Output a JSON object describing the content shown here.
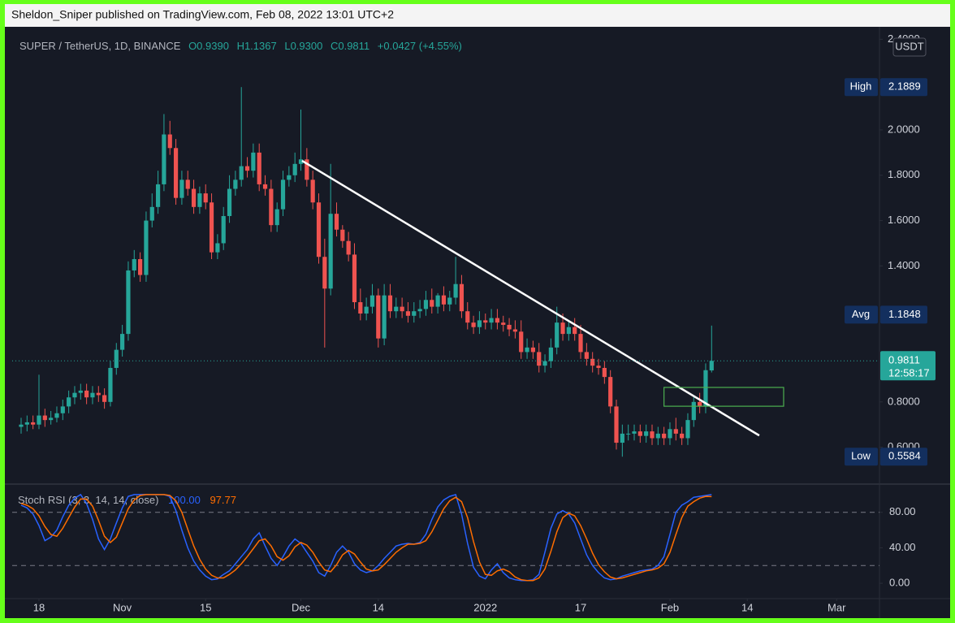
{
  "header": "Sheldon_Sniper published on TradingView.com, Feb 08, 2022 13:01 UTC+2",
  "chart_data": [
    {
      "type": "candlestick",
      "legend": {
        "symbol": "SUPER / TetherUS, 1D, BINANCE",
        "open": "O0.9390",
        "high": "H1.1367",
        "low": "L0.9300",
        "close": "C0.9811",
        "change": "+0.0427 (+4.55%)"
      },
      "currency": "USDT",
      "up_color": "#26a69a",
      "down_color": "#ef5350",
      "open": [
        0.69,
        0.7,
        0.71,
        0.7,
        0.74,
        0.72,
        0.73,
        0.75,
        0.78,
        0.82,
        0.84,
        0.85,
        0.82,
        0.84,
        0.83,
        0.8,
        0.95,
        1.03,
        1.1,
        1.38,
        1.43,
        1.36,
        1.6,
        1.66,
        1.76,
        1.98,
        1.92,
        1.7,
        1.78,
        1.74,
        1.66,
        1.72,
        1.68,
        1.46,
        1.5,
        1.62,
        1.74,
        1.78,
        1.84,
        1.82,
        1.9,
        1.76,
        1.74,
        1.58,
        1.65,
        1.78,
        1.8,
        1.85,
        1.87,
        1.78,
        1.68,
        1.44,
        1.3,
        1.63,
        1.56,
        1.51,
        1.45,
        1.24,
        1.19,
        1.22,
        1.27,
        1.08,
        1.27,
        1.2,
        1.22,
        1.2,
        1.18,
        1.2,
        1.21,
        1.25,
        1.22,
        1.27,
        1.23,
        1.26,
        1.32,
        1.2,
        1.15,
        1.13,
        1.16,
        1.15,
        1.17,
        1.15,
        1.14,
        1.12,
        1.11,
        1.02,
        1.04,
        1.02,
        0.96,
        0.98,
        1.04,
        1.15,
        1.1,
        1.13,
        1.1,
        1.02,
        0.99,
        0.96,
        0.95,
        0.91,
        0.78,
        0.62,
        0.66,
        0.66,
        0.67,
        0.65,
        0.67,
        0.64,
        0.66,
        0.64,
        0.68,
        0.66,
        0.64,
        0.72,
        0.8,
        0.78,
        0.939
      ],
      "high": [
        0.73,
        0.74,
        0.74,
        0.92,
        0.77,
        0.76,
        0.78,
        0.81,
        0.85,
        0.87,
        0.88,
        0.88,
        0.87,
        0.87,
        0.86,
        0.98,
        1.06,
        1.14,
        1.42,
        1.47,
        1.46,
        1.64,
        1.72,
        1.82,
        2.07,
        2.04,
        1.96,
        1.82,
        1.82,
        1.78,
        1.75,
        1.76,
        1.72,
        1.54,
        1.66,
        1.8,
        1.82,
        2.1889,
        1.88,
        1.94,
        1.94,
        1.8,
        1.78,
        1.68,
        1.82,
        1.84,
        1.9,
        2.09,
        1.92,
        1.82,
        1.72,
        1.52,
        1.85,
        1.68,
        1.58,
        1.55,
        1.5,
        1.3,
        1.26,
        1.32,
        1.3,
        1.32,
        1.32,
        1.26,
        1.26,
        1.24,
        1.24,
        1.25,
        1.29,
        1.3,
        1.28,
        1.31,
        1.29,
        1.44,
        1.36,
        1.24,
        1.18,
        1.2,
        1.19,
        1.21,
        1.21,
        1.18,
        1.17,
        1.16,
        1.16,
        1.08,
        1.07,
        1.06,
        1.01,
        1.08,
        1.22,
        1.19,
        1.16,
        1.17,
        1.14,
        1.06,
        1.02,
        0.99,
        0.98,
        0.94,
        0.81,
        0.7,
        0.7,
        0.7,
        0.7,
        0.7,
        0.7,
        0.69,
        0.69,
        0.71,
        0.73,
        0.69,
        0.75,
        0.83,
        0.84,
        0.97,
        1.1367
      ],
      "low": [
        0.66,
        0.67,
        0.68,
        0.68,
        0.69,
        0.7,
        0.71,
        0.72,
        0.75,
        0.79,
        0.81,
        0.79,
        0.79,
        0.8,
        0.77,
        0.78,
        0.92,
        1.0,
        1.07,
        1.35,
        1.33,
        1.33,
        1.57,
        1.63,
        1.73,
        1.89,
        1.67,
        1.67,
        1.71,
        1.63,
        1.63,
        1.65,
        1.43,
        1.43,
        1.47,
        1.59,
        1.71,
        1.75,
        1.79,
        1.79,
        1.73,
        1.71,
        1.55,
        1.55,
        1.62,
        1.75,
        1.77,
        1.82,
        1.75,
        1.65,
        1.41,
        1.04,
        1.27,
        1.53,
        1.48,
        1.42,
        1.21,
        1.16,
        1.16,
        1.19,
        1.04,
        1.05,
        1.17,
        1.17,
        1.17,
        1.15,
        1.15,
        1.17,
        1.18,
        1.19,
        1.19,
        1.2,
        1.2,
        1.23,
        1.17,
        1.12,
        1.1,
        1.1,
        1.12,
        1.12,
        1.12,
        1.11,
        1.09,
        1.08,
        0.99,
        0.99,
        0.99,
        0.93,
        0.93,
        0.95,
        1.01,
        1.07,
        1.07,
        1.07,
        0.99,
        0.96,
        0.93,
        0.92,
        0.88,
        0.75,
        0.59,
        0.5584,
        0.63,
        0.63,
        0.62,
        0.62,
        0.61,
        0.61,
        0.61,
        0.61,
        0.63,
        0.61,
        0.61,
        0.69,
        0.75,
        0.75,
        0.93
      ],
      "close": [
        0.7,
        0.71,
        0.7,
        0.74,
        0.72,
        0.73,
        0.75,
        0.78,
        0.82,
        0.84,
        0.85,
        0.82,
        0.84,
        0.83,
        0.8,
        0.95,
        1.03,
        1.1,
        1.38,
        1.43,
        1.36,
        1.6,
        1.66,
        1.76,
        1.98,
        1.92,
        1.7,
        1.78,
        1.74,
        1.66,
        1.72,
        1.68,
        1.46,
        1.5,
        1.62,
        1.74,
        1.78,
        1.84,
        1.82,
        1.9,
        1.76,
        1.74,
        1.58,
        1.65,
        1.78,
        1.8,
        1.85,
        1.87,
        1.78,
        1.68,
        1.44,
        1.3,
        1.63,
        1.56,
        1.51,
        1.45,
        1.24,
        1.19,
        1.22,
        1.27,
        1.08,
        1.27,
        1.2,
        1.22,
        1.2,
        1.18,
        1.2,
        1.21,
        1.25,
        1.22,
        1.27,
        1.23,
        1.26,
        1.32,
        1.2,
        1.15,
        1.13,
        1.16,
        1.15,
        1.17,
        1.15,
        1.14,
        1.12,
        1.11,
        1.02,
        1.04,
        1.02,
        0.96,
        0.98,
        1.04,
        1.15,
        1.1,
        1.13,
        1.1,
        1.02,
        0.99,
        0.96,
        0.95,
        0.91,
        0.78,
        0.62,
        0.66,
        0.66,
        0.67,
        0.65,
        0.67,
        0.64,
        0.66,
        0.64,
        0.68,
        0.66,
        0.64,
        0.72,
        0.8,
        0.78,
        0.94,
        0.9811
      ],
      "xlim": [
        -1.5,
        144.2
      ],
      "xticks": [
        {
          "value": 3,
          "label": "18"
        },
        {
          "value": 17,
          "label": "Nov"
        },
        {
          "value": 31,
          "label": "15"
        },
        {
          "value": 47,
          "label": "Dec"
        },
        {
          "value": 60,
          "label": "14"
        },
        {
          "value": 78,
          "label": "2022"
        },
        {
          "value": 94,
          "label": "17"
        },
        {
          "value": 109,
          "label": "Feb"
        },
        {
          "value": 122,
          "label": "14"
        },
        {
          "value": 137,
          "label": "Mar"
        }
      ],
      "ylim": [
        0.441,
        2.437
      ],
      "yticks": [
        {
          "value": 2.4,
          "label": "2.4000"
        },
        {
          "value": 2.0,
          "label": "2.0000"
        },
        {
          "value": 1.8,
          "label": "1.8000"
        },
        {
          "value": 1.6,
          "label": "1.6000"
        },
        {
          "value": 1.4,
          "label": "1.4000"
        },
        {
          "value": 0.8,
          "label": "0.8000"
        },
        {
          "value": 0.6,
          "label": "0.6000"
        }
      ],
      "markers": [
        {
          "label": "High",
          "value": 2.1889
        },
        {
          "label": "Avg",
          "value": 1.1848
        },
        {
          "label": "Low",
          "value": 0.5584
        }
      ],
      "last_price": {
        "value": 0.9811,
        "countdown": "12:58:17",
        "color": "#26a69a"
      },
      "trendline": {
        "x": [
          47.2,
          124.0
        ],
        "y": [
          1.864,
          0.652
        ],
        "color": "#ffffff"
      },
      "zone": {
        "x": [
          108.0,
          128.1
        ],
        "y": [
          0.781,
          0.864
        ],
        "color": "#4caf50"
      }
    },
    {
      "type": "line",
      "title": "Stoch RSI (3, 3, 14, 14, close)",
      "xlim": [
        -1.5,
        144.2
      ],
      "ylim": [
        -15.5,
        110
      ],
      "yticks": [
        {
          "value": 80,
          "label": "80.00"
        },
        {
          "value": 40,
          "label": "40.00"
        },
        {
          "value": 0,
          "label": "0.00"
        }
      ],
      "bands": [
        20,
        80
      ],
      "series": [
        {
          "color": "#2962ff",
          "last_label": "100.00",
          "values": [
            88,
            85,
            78,
            65,
            48,
            52,
            60,
            75,
            88,
            96,
            100,
            90,
            72,
            50,
            38,
            50,
            68,
            85,
            98,
            100,
            100,
            100,
            100,
            100,
            100,
            98,
            82,
            60,
            40,
            25,
            15,
            8,
            4,
            5,
            10,
            14,
            22,
            30,
            38,
            50,
            57,
            42,
            28,
            20,
            30,
            42,
            50,
            45,
            35,
            25,
            12,
            8,
            20,
            35,
            42,
            35,
            22,
            15,
            12,
            14,
            20,
            28,
            35,
            42,
            44,
            45,
            44,
            46,
            55,
            72,
            86,
            94,
            98,
            100,
            78,
            45,
            18,
            8,
            5,
            15,
            22,
            12,
            6,
            4,
            3,
            3,
            4,
            10,
            35,
            62,
            78,
            82,
            78,
            68,
            50,
            32,
            20,
            12,
            6,
            4,
            5,
            8,
            10,
            12,
            14,
            15,
            16,
            20,
            30,
            55,
            80,
            88,
            92,
            97,
            98,
            99,
            100
          ]
        },
        {
          "color": "#ff6d00",
          "last_label": "97.77",
          "values": [
            90,
            88,
            84,
            76,
            64,
            55,
            53,
            62,
            74,
            86,
            95,
            95,
            87,
            71,
            53,
            46,
            52,
            68,
            84,
            94,
            99,
            100,
            100,
            100,
            100,
            99,
            93,
            80,
            61,
            42,
            27,
            16,
            9,
            6,
            6,
            10,
            15,
            22,
            30,
            39,
            48,
            50,
            42,
            30,
            26,
            31,
            41,
            46,
            43,
            35,
            24,
            15,
            13,
            21,
            32,
            37,
            33,
            24,
            16,
            14,
            15,
            21,
            28,
            35,
            40,
            44,
            44,
            45,
            48,
            58,
            71,
            84,
            93,
            97,
            92,
            74,
            47,
            24,
            10,
            9,
            14,
            16,
            13,
            7,
            4,
            3,
            3,
            6,
            16,
            36,
            58,
            74,
            79,
            76,
            65,
            50,
            34,
            21,
            13,
            7,
            5,
            6,
            8,
            10,
            12,
            14,
            15,
            17,
            22,
            35,
            55,
            74,
            87,
            92,
            96,
            98,
            97.77
          ]
        }
      ]
    }
  ]
}
